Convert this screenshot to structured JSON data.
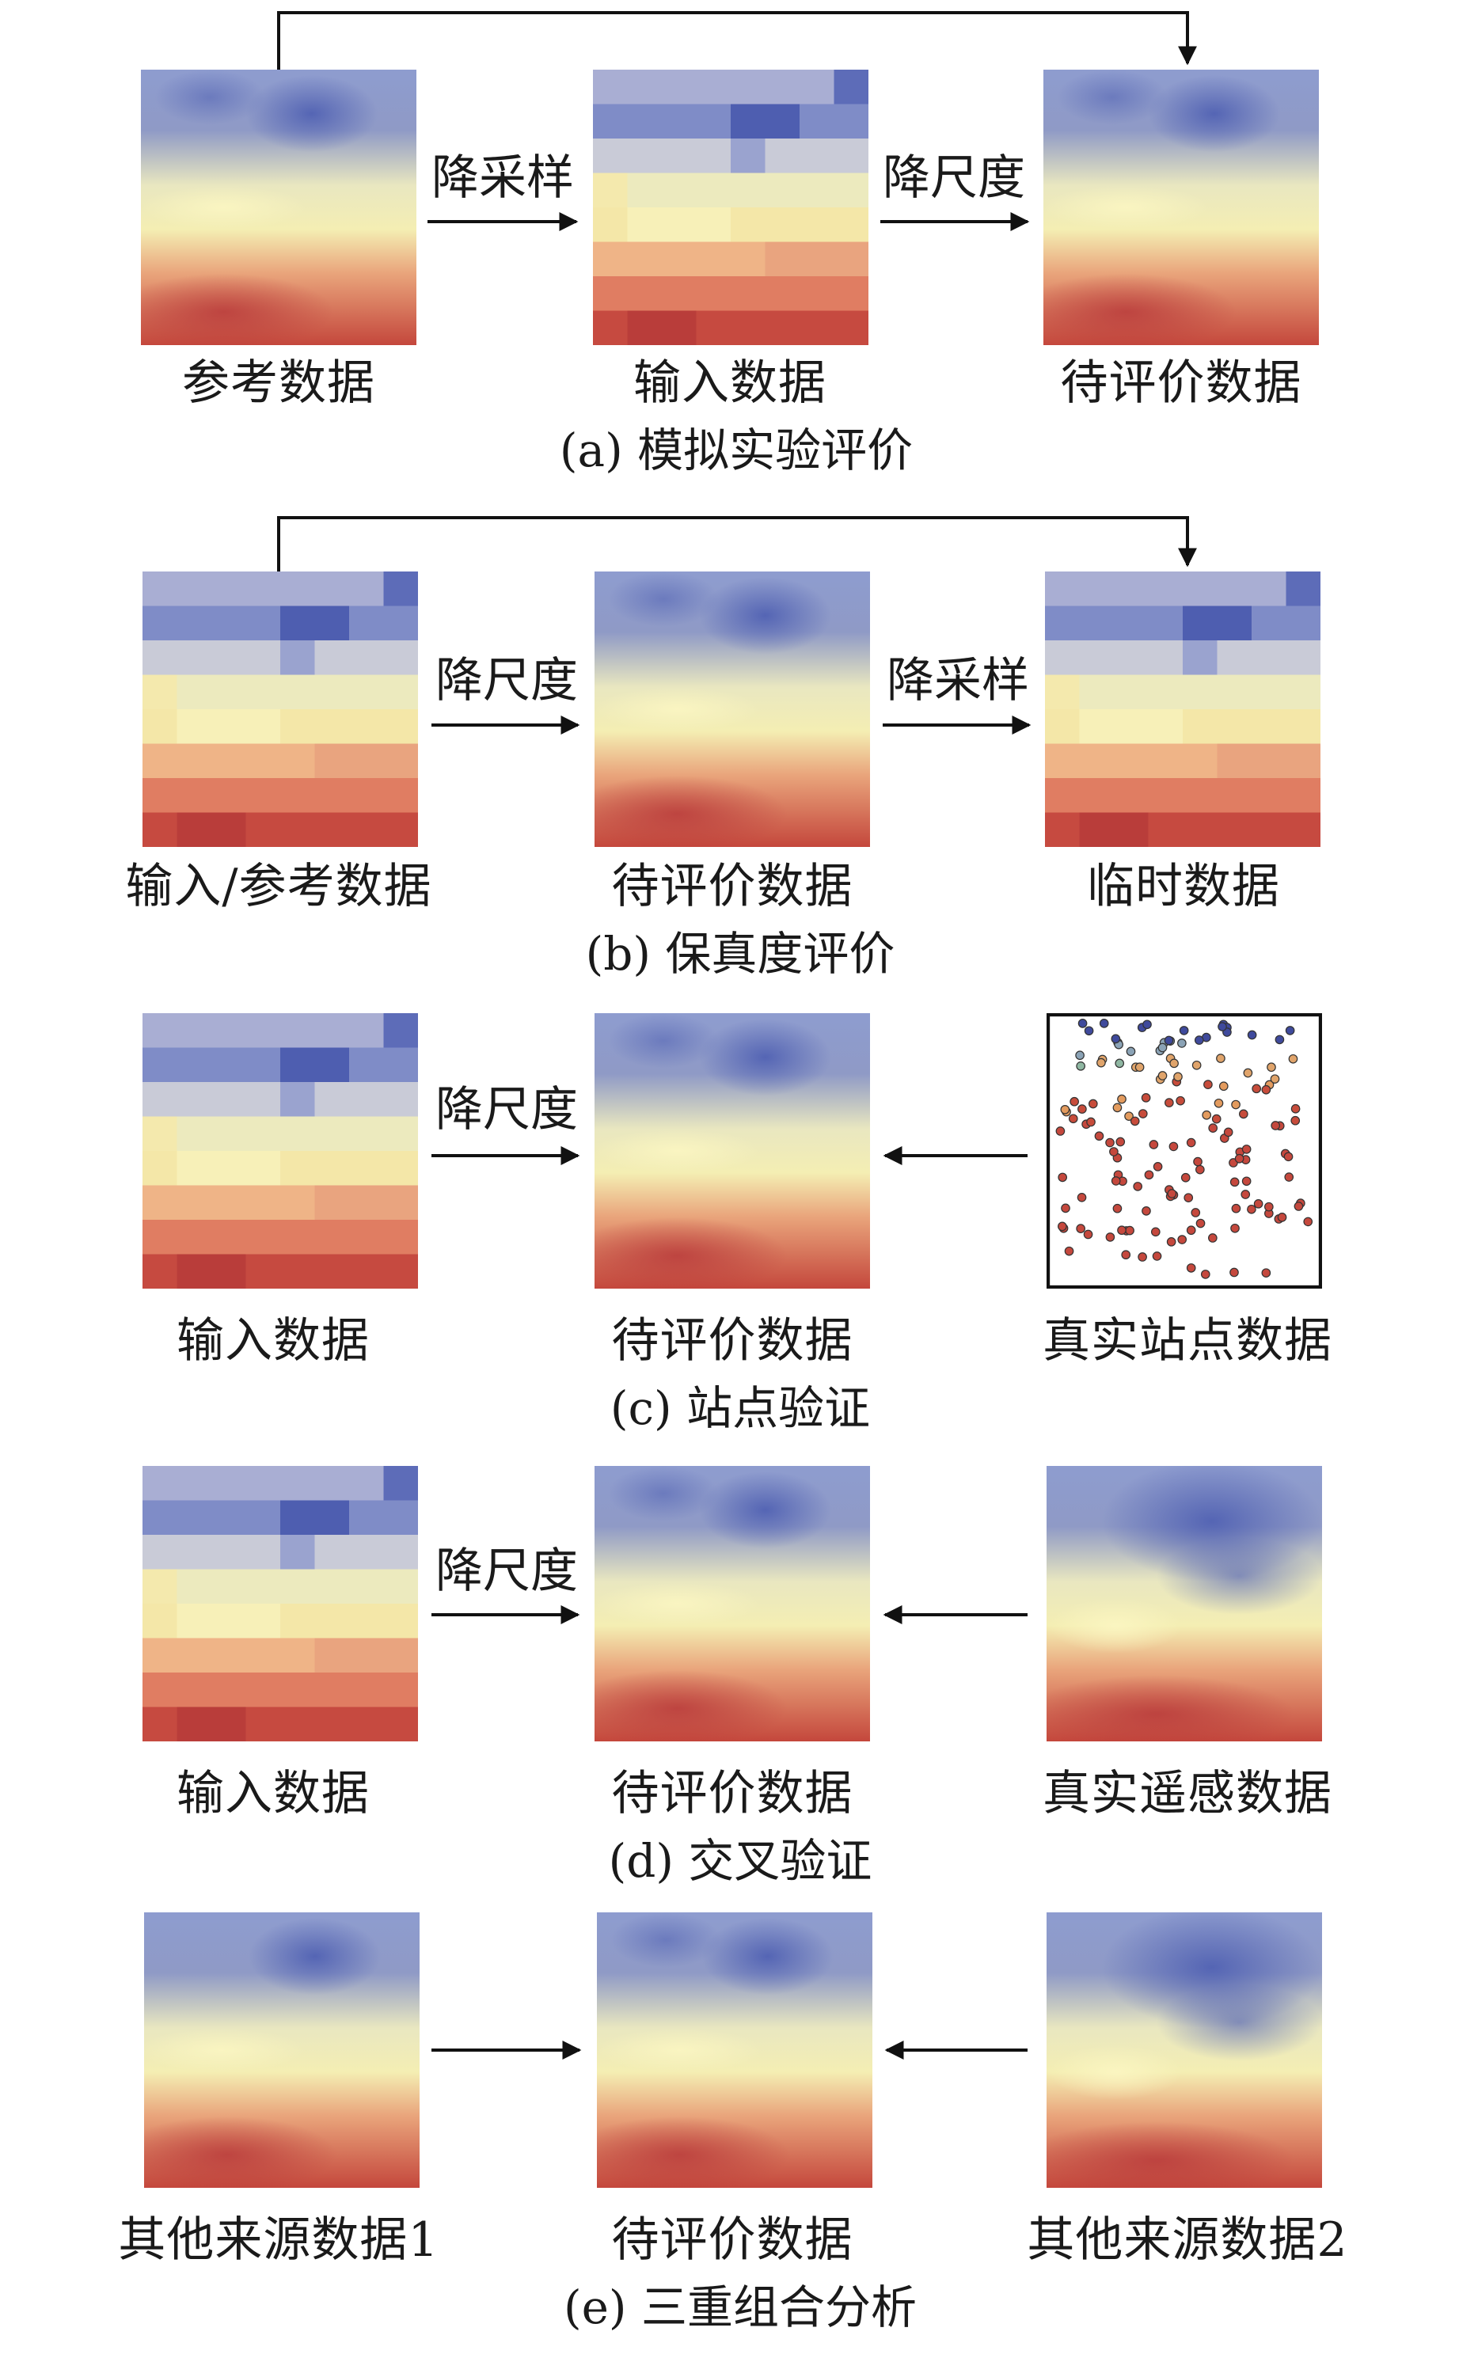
{
  "panel_a": {
    "caption": "(a) 模拟实验评价",
    "labels": [
      "参考数据",
      "输入数据",
      "待评价数据"
    ],
    "ops": [
      "降采样",
      "降尺度"
    ]
  },
  "panel_b": {
    "caption": "(b) 保真度评价",
    "labels": [
      "输入/参考数据",
      "待评价数据",
      "临时数据"
    ],
    "ops": [
      "降尺度",
      "降采样"
    ]
  },
  "panel_c": {
    "caption": "(c) 站点验证",
    "labels": [
      "输入数据",
      "待评价数据",
      "真实站点数据"
    ],
    "ops": [
      "降尺度"
    ]
  },
  "panel_d": {
    "caption": "(d) 交叉验证",
    "labels": [
      "输入数据",
      "待评价数据",
      "真实遥感数据"
    ],
    "ops": [
      "降尺度"
    ]
  },
  "panel_e": {
    "caption": "(e) 三重组合分析",
    "labels": [
      "其他来源数据1",
      "待评价数据",
      "其他来源数据2"
    ]
  },
  "colors": {
    "blue": "#4a5fb0",
    "yellow": "#f3efb6",
    "red": "#c0463b",
    "arrow": "#111111"
  }
}
